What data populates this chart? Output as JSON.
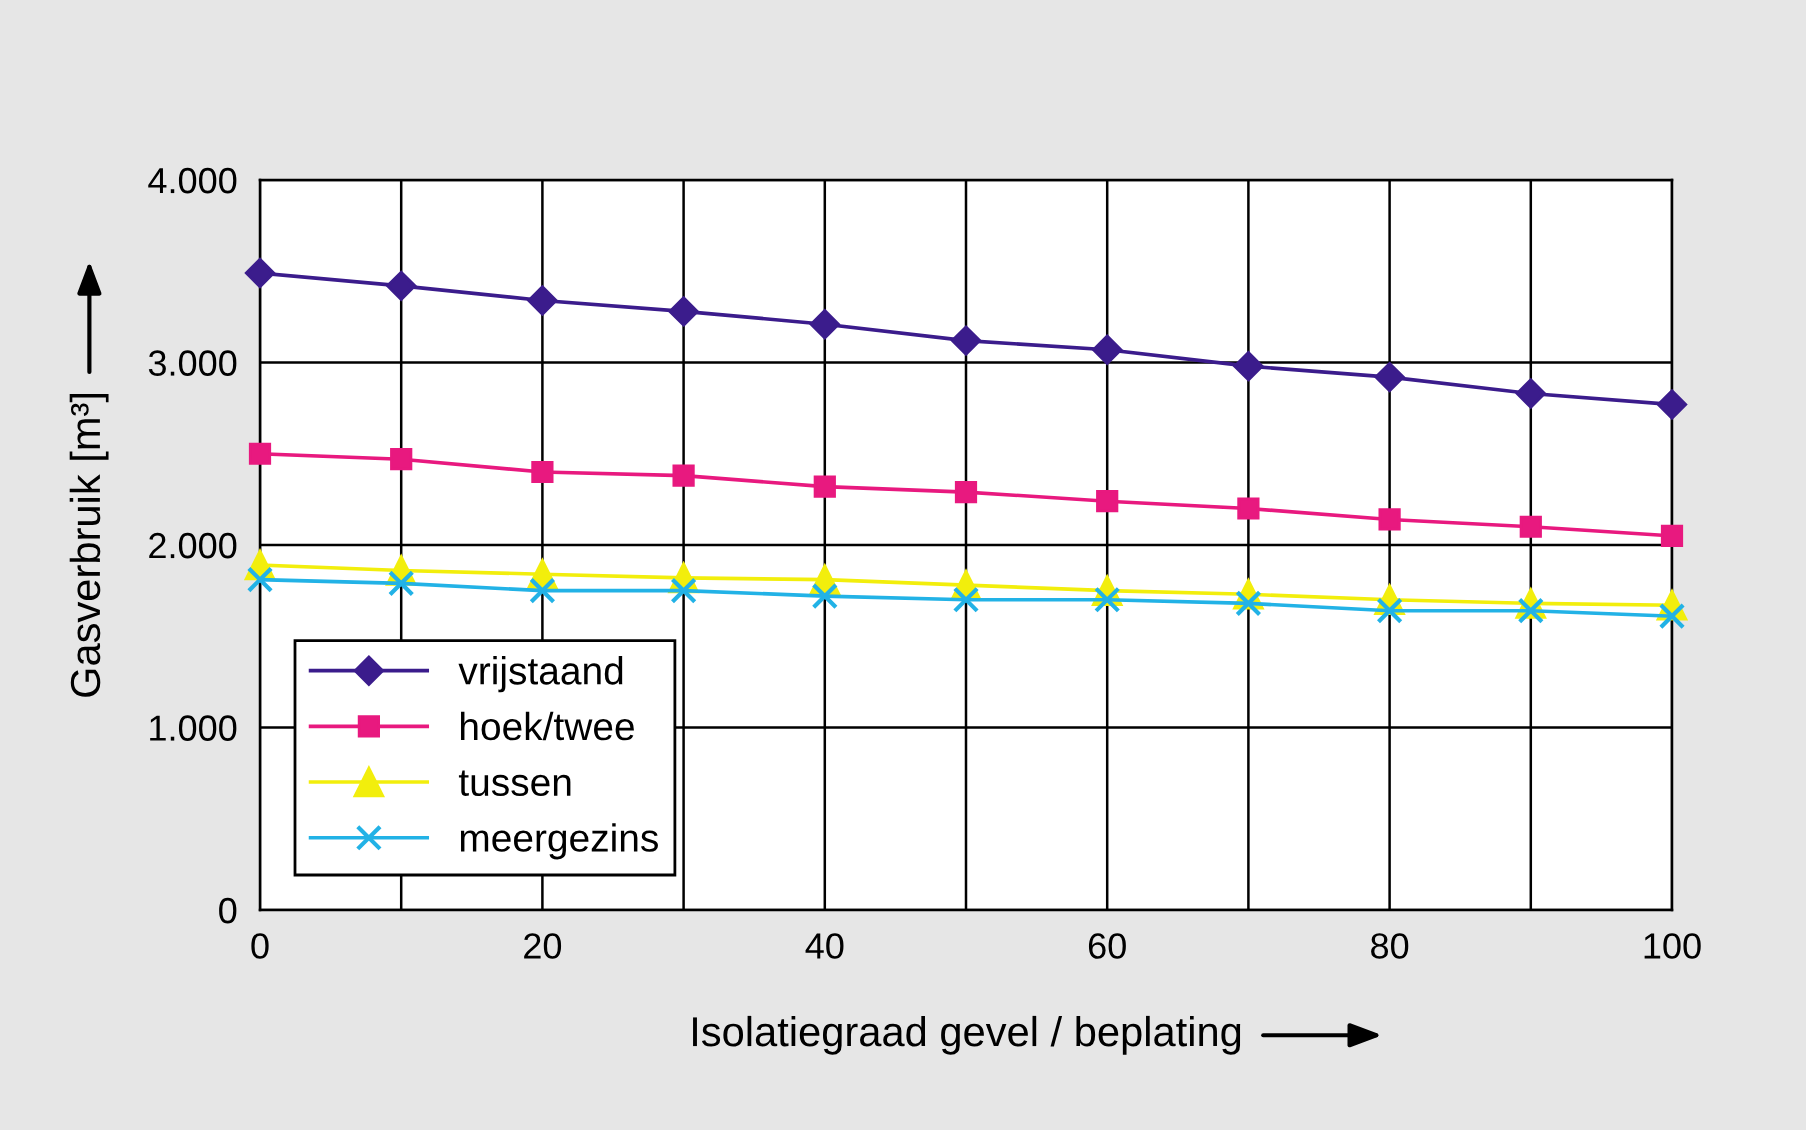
{
  "chart_data": {
    "type": "line",
    "xlabel": "Isolatiegraad gevel / beplating",
    "ylabel": "Gasverbruik [m³]",
    "x": [
      0,
      10,
      20,
      30,
      40,
      50,
      60,
      70,
      80,
      90,
      100
    ],
    "series": [
      {
        "name": "vrijstaand",
        "color": "#3b1c8c",
        "marker": "diamond",
        "values": [
          3490,
          3420,
          3340,
          3280,
          3210,
          3120,
          3070,
          2980,
          2920,
          2830,
          2770
        ]
      },
      {
        "name": "hoek/twee",
        "color": "#e8197f",
        "marker": "square",
        "values": [
          2500,
          2470,
          2400,
          2380,
          2320,
          2290,
          2240,
          2200,
          2140,
          2100,
          2050
        ]
      },
      {
        "name": "tussen",
        "color": "#f2ee0c",
        "marker": "triangle",
        "values": [
          1890,
          1860,
          1840,
          1820,
          1810,
          1780,
          1750,
          1730,
          1700,
          1680,
          1670
        ]
      },
      {
        "name": "meergezins",
        "color": "#22b2e6",
        "marker": "cross",
        "values": [
          1810,
          1790,
          1750,
          1750,
          1720,
          1700,
          1700,
          1680,
          1640,
          1640,
          1610
        ]
      }
    ],
    "xlim": [
      0,
      100
    ],
    "ylim": [
      0,
      4000
    ],
    "xticks": [
      0,
      {
        "value": 10,
        "label": null
      },
      20,
      {
        "value": 30,
        "label": null
      },
      40,
      {
        "value": 50,
        "label": null
      },
      60,
      {
        "value": 70,
        "label": null
      },
      80,
      {
        "value": 90,
        "label": null
      },
      100
    ],
    "yticks": [
      0,
      {
        "value": 1000,
        "label": "1.000"
      },
      {
        "value": 2000,
        "label": "2.000"
      },
      {
        "value": 3000,
        "label": "3.000"
      },
      {
        "value": 4000,
        "label": "4.000"
      }
    ],
    "grid": true,
    "legend": "bottom left"
  }
}
